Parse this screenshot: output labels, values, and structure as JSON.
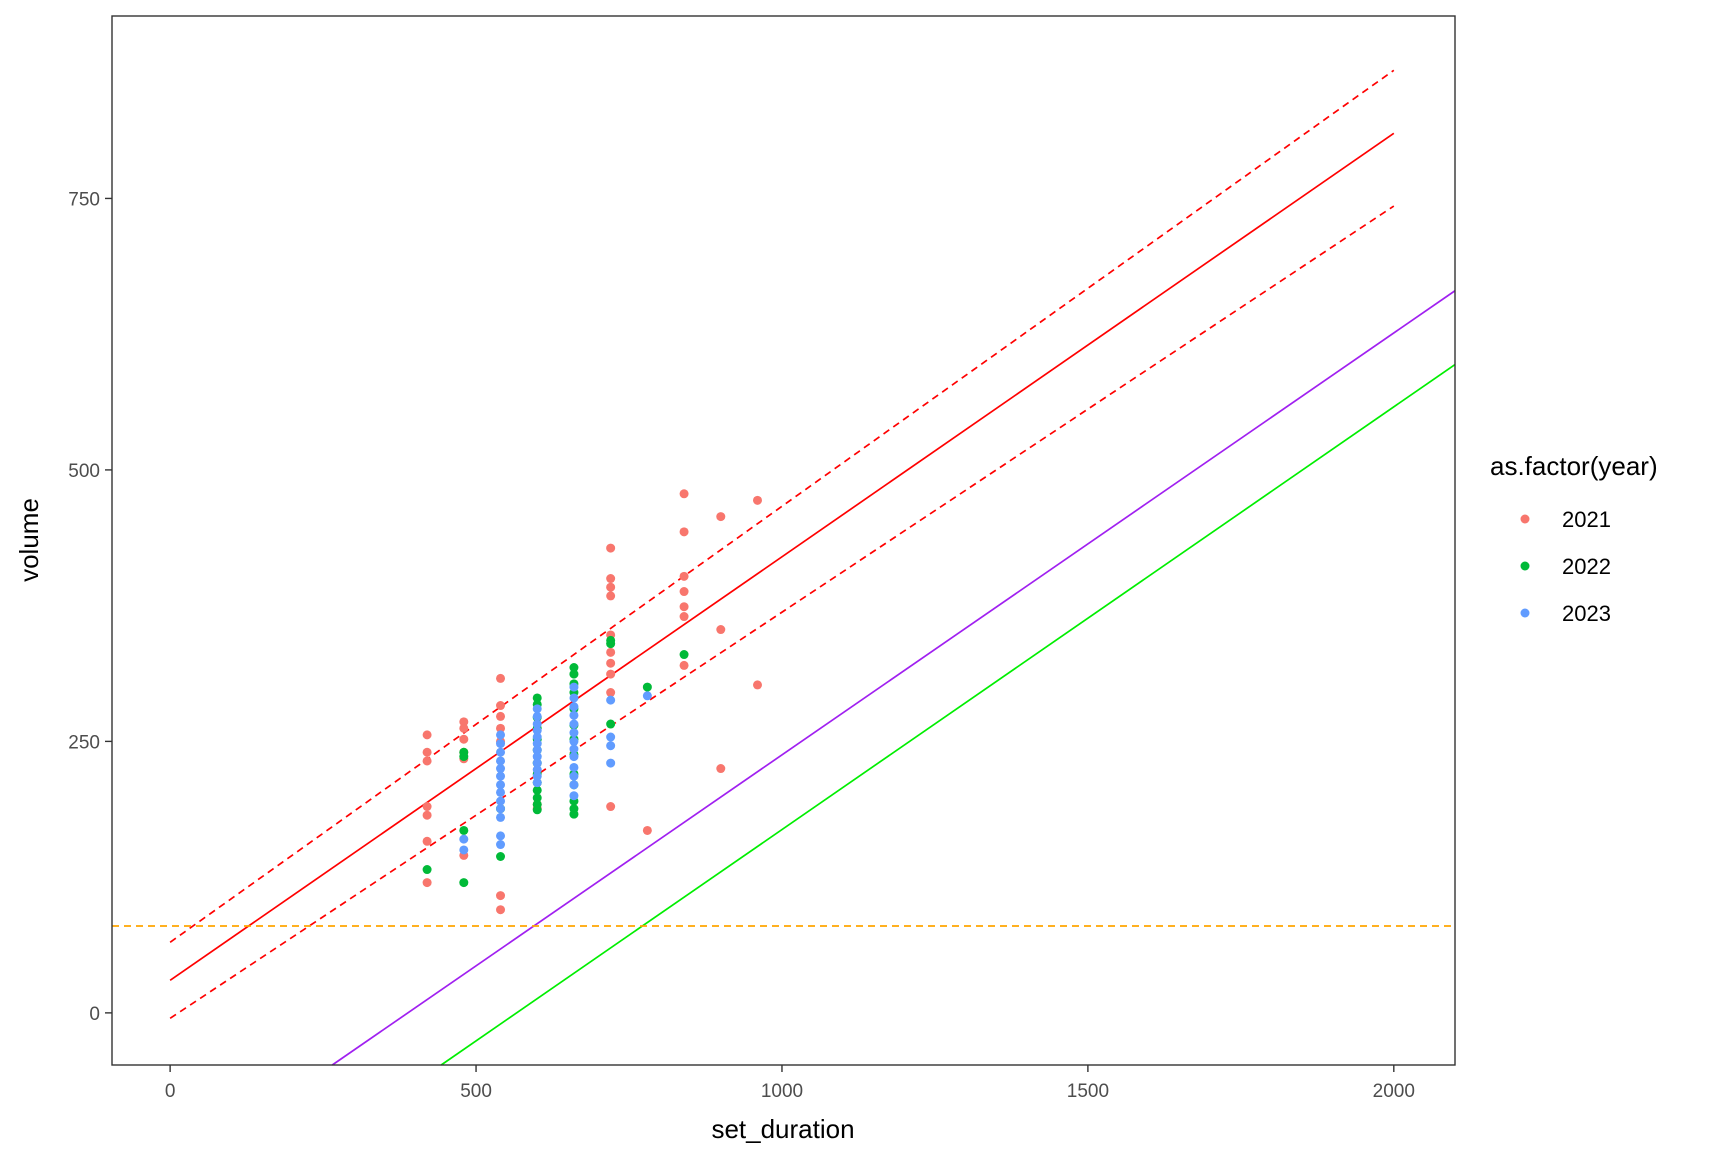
{
  "chart_data": {
    "type": "scatter",
    "xlabel": "set_duration",
    "ylabel": "volume",
    "xlim": [
      -95,
      2100
    ],
    "ylim": [
      -48,
      918
    ],
    "x_ticks": [
      0,
      500,
      1000,
      1500,
      2000
    ],
    "y_ticks": [
      0,
      250,
      500,
      750
    ],
    "x_tick_labels": [
      "0",
      "500",
      "1000",
      "1500",
      "2000"
    ],
    "y_tick_labels": [
      "0",
      "250",
      "500",
      "750"
    ],
    "grid": false,
    "legend": {
      "title": "as.factor(year)",
      "position": "right",
      "entries": [
        {
          "label": "2021",
          "color": "#F8766D"
        },
        {
          "label": "2022",
          "color": "#00BA38"
        },
        {
          "label": "2023",
          "color": "#619CFF"
        }
      ]
    },
    "series": [
      {
        "name": "2021",
        "color": "#F8766D",
        "points": [
          [
            420,
            256
          ],
          [
            420,
            240
          ],
          [
            420,
            232
          ],
          [
            420,
            190
          ],
          [
            420,
            182
          ],
          [
            420,
            158
          ],
          [
            420,
            120
          ],
          [
            480,
            268
          ],
          [
            480,
            262
          ],
          [
            480,
            252
          ],
          [
            480,
            240
          ],
          [
            480,
            234
          ],
          [
            480,
            145
          ],
          [
            540,
            308
          ],
          [
            540,
            283
          ],
          [
            540,
            273
          ],
          [
            540,
            262
          ],
          [
            540,
            250
          ],
          [
            540,
            108
          ],
          [
            540,
            95
          ],
          [
            600,
            188
          ],
          [
            600,
            192
          ],
          [
            720,
            428
          ],
          [
            720,
            400
          ],
          [
            720,
            392
          ],
          [
            720,
            384
          ],
          [
            720,
            348
          ],
          [
            720,
            332
          ],
          [
            720,
            322
          ],
          [
            720,
            312
          ],
          [
            720,
            295
          ],
          [
            720,
            190
          ],
          [
            780,
            168
          ],
          [
            840,
            478
          ],
          [
            840,
            443
          ],
          [
            840,
            402
          ],
          [
            840,
            388
          ],
          [
            840,
            374
          ],
          [
            840,
            365
          ],
          [
            840,
            320
          ],
          [
            900,
            457
          ],
          [
            900,
            353
          ],
          [
            900,
            225
          ],
          [
            960,
            472
          ],
          [
            960,
            302
          ]
        ]
      },
      {
        "name": "2022",
        "color": "#00BA38",
        "points": [
          [
            420,
            132
          ],
          [
            480,
            168
          ],
          [
            480,
            240
          ],
          [
            480,
            236
          ],
          [
            480,
            120
          ],
          [
            540,
            188
          ],
          [
            540,
            144
          ],
          [
            600,
            290
          ],
          [
            600,
            284
          ],
          [
            600,
            272
          ],
          [
            600,
            262
          ],
          [
            600,
            252
          ],
          [
            600,
            242
          ],
          [
            600,
            230
          ],
          [
            600,
            220
          ],
          [
            600,
            212
          ],
          [
            600,
            205
          ],
          [
            600,
            198
          ],
          [
            600,
            192
          ],
          [
            600,
            187
          ],
          [
            660,
            318
          ],
          [
            660,
            312
          ],
          [
            660,
            303
          ],
          [
            660,
            295
          ],
          [
            660,
            280
          ],
          [
            660,
            265
          ],
          [
            660,
            252
          ],
          [
            660,
            238
          ],
          [
            660,
            220
          ],
          [
            660,
            210
          ],
          [
            660,
            195
          ],
          [
            660,
            188
          ],
          [
            660,
            183
          ],
          [
            720,
            343
          ],
          [
            720,
            340
          ],
          [
            720,
            266
          ],
          [
            780,
            300
          ],
          [
            840,
            330
          ]
        ]
      },
      {
        "name": "2023",
        "color": "#619CFF",
        "points": [
          [
            480,
            160
          ],
          [
            480,
            150
          ],
          [
            540,
            256
          ],
          [
            540,
            248
          ],
          [
            540,
            240
          ],
          [
            540,
            232
          ],
          [
            540,
            225
          ],
          [
            540,
            218
          ],
          [
            540,
            210
          ],
          [
            540,
            203
          ],
          [
            540,
            195
          ],
          [
            540,
            188
          ],
          [
            540,
            180
          ],
          [
            540,
            163
          ],
          [
            540,
            155
          ],
          [
            600,
            280
          ],
          [
            600,
            273
          ],
          [
            600,
            266
          ],
          [
            600,
            260
          ],
          [
            600,
            254
          ],
          [
            600,
            248
          ],
          [
            600,
            242
          ],
          [
            600,
            236
          ],
          [
            600,
            230
          ],
          [
            600,
            224
          ],
          [
            600,
            218
          ],
          [
            600,
            212
          ],
          [
            660,
            300
          ],
          [
            660,
            290
          ],
          [
            660,
            282
          ],
          [
            660,
            274
          ],
          [
            660,
            266
          ],
          [
            660,
            258
          ],
          [
            660,
            250
          ],
          [
            660,
            243
          ],
          [
            660,
            236
          ],
          [
            660,
            226
          ],
          [
            660,
            218
          ],
          [
            660,
            210
          ],
          [
            660,
            200
          ],
          [
            720,
            288
          ],
          [
            720,
            254
          ],
          [
            720,
            246
          ],
          [
            720,
            230
          ],
          [
            780,
            292
          ]
        ]
      }
    ],
    "reference_lines": [
      {
        "kind": "segment",
        "color": "#FF0000",
        "dash": "solid",
        "from": [
          0,
          30
        ],
        "to": [
          2000,
          810
        ]
      },
      {
        "kind": "segment",
        "color": "#FF0000",
        "dash": "dashed",
        "from": [
          0,
          65
        ],
        "to": [
          2000,
          868
        ]
      },
      {
        "kind": "segment",
        "color": "#FF0000",
        "dash": "dashed",
        "from": [
          0,
          -5
        ],
        "to": [
          2000,
          743
        ]
      },
      {
        "kind": "segment",
        "color": "#A020F0",
        "dash": "solid",
        "from": [
          265,
          -48
        ],
        "to": [
          2100,
          665
        ]
      },
      {
        "kind": "segment",
        "color": "#00EE00",
        "dash": "solid",
        "from": [
          443,
          -48
        ],
        "to": [
          2100,
          597
        ]
      },
      {
        "kind": "hline",
        "color": "#FFA500",
        "dash": "dashed",
        "y": 80
      }
    ]
  }
}
